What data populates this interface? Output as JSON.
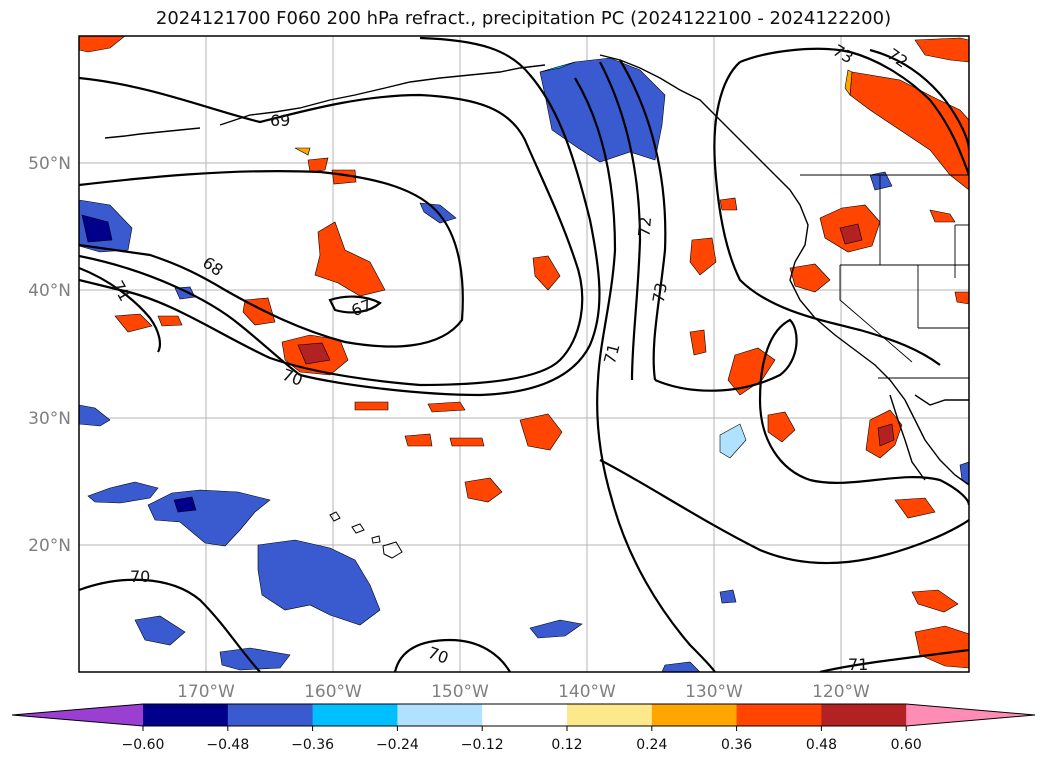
{
  "title": "2024121700 F060 200 hPa refract., precipitation PC (2024122100 - 2024122200)",
  "map": {
    "lon_ticks": [
      "170°W",
      "160°W",
      "150°W",
      "140°W",
      "130°W",
      "120°W"
    ],
    "lat_ticks": [
      "50°N",
      "40°N",
      "30°N",
      "20°N"
    ],
    "contour_labels": [
      "69",
      "68",
      "67",
      "71",
      "70",
      "70",
      "70",
      "71",
      "72",
      "73",
      "73",
      "72",
      "71"
    ]
  },
  "colorbar": {
    "ticks": [
      "−0.60",
      "−0.48",
      "−0.36",
      "−0.24",
      "−0.12",
      "0.12",
      "0.24",
      "0.36",
      "0.48",
      "0.60"
    ],
    "colors": [
      "#9a3fd2",
      "#00008b",
      "#3a5bd0",
      "#00bfff",
      "#b0e2ff",
      "#ffffff",
      "#fde98c",
      "#ffa500",
      "#ff4500",
      "#b22222",
      "#ff8cb4"
    ]
  }
}
